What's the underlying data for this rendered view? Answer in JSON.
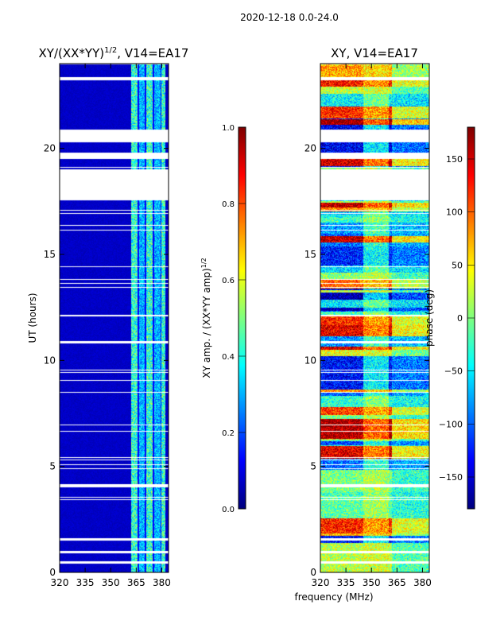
{
  "suptitle": "2020-12-18 0.0-24.0",
  "chart_data": [
    {
      "type": "heatmap",
      "title": "XY/(XX*YY)^1/2, V14=EA17",
      "title_main": "XY/(XX*YY)",
      "title_sup": "1/2",
      "title_tail": ", V14=EA17",
      "xlabel": "frequency (MHz)",
      "ylabel": "UT (hours)",
      "xlim": [
        320,
        384
      ],
      "ylim": [
        0,
        24
      ],
      "xticks": [
        "320",
        "335",
        "350",
        "365",
        "380"
      ],
      "xtick_values": [
        320,
        335,
        350,
        365,
        380
      ],
      "yticks": [
        "0",
        "5",
        "10",
        "15",
        "20"
      ],
      "ytick_values": [
        0,
        5,
        10,
        15,
        20
      ],
      "colormap": "jet",
      "colorbar": {
        "label": "XY amp. / (XX*YY amp)^1/2",
        "label_main": "XY amp. / (XX*YY amp)",
        "label_sup": "1/2",
        "range": [
          0.0,
          1.0
        ],
        "ticks": [
          "0.0",
          "0.2",
          "0.4",
          "0.6",
          "0.8",
          "1.0"
        ],
        "tick_values": [
          0,
          0.2,
          0.4,
          0.6,
          0.8,
          1.0
        ]
      },
      "background_value": 0.05,
      "active_band_mhz": [
        362,
        382
      ],
      "active_band_value": 0.4
    },
    {
      "type": "heatmap",
      "title": "XY, V14=EA17",
      "xlabel": "frequency (MHz)",
      "ylabel": "",
      "xlim": [
        320,
        384
      ],
      "ylim": [
        0,
        24
      ],
      "xticks": [
        "320",
        "335",
        "350",
        "365",
        "380"
      ],
      "xtick_values": [
        320,
        335,
        350,
        365,
        380
      ],
      "yticks": [
        "0",
        "5",
        "10",
        "15",
        "20"
      ],
      "ytick_values": [
        0,
        5,
        10,
        15,
        20
      ],
      "colormap": "jet",
      "colorbar": {
        "label": "phase (deg)",
        "range": [
          -180,
          180
        ],
        "ticks": [
          "−150",
          "−100",
          "−50",
          "0",
          "50",
          "100",
          "150"
        ],
        "tick_values": [
          -150,
          -100,
          -50,
          0,
          50,
          100,
          150
        ]
      }
    }
  ],
  "flagged_ut_ranges": [
    [
      17.6,
      19.0
    ],
    [
      19.5,
      19.8
    ],
    [
      20.3,
      20.9
    ],
    [
      23.2,
      23.35
    ],
    [
      10.8,
      10.9
    ],
    [
      4.0,
      4.15
    ],
    [
      1.5,
      1.6
    ],
    [
      0.9,
      1.0
    ],
    [
      0.4,
      0.5
    ]
  ]
}
